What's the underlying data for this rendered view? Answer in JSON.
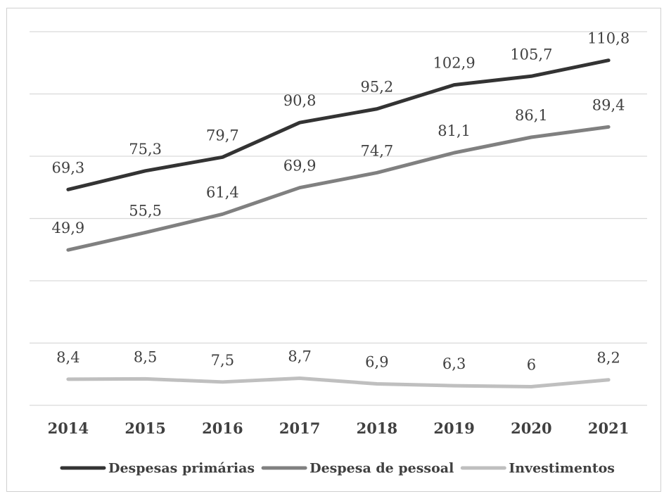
{
  "chart_data": {
    "type": "line",
    "title": "",
    "xlabel": "",
    "ylabel": "",
    "categories": [
      "2014",
      "2015",
      "2016",
      "2017",
      "2018",
      "2019",
      "2020",
      "2021"
    ],
    "ylim": [
      0,
      120
    ],
    "grid": true,
    "legend_position": "bottom",
    "series": [
      {
        "name": "Despesas primárias",
        "color": "#333333",
        "values": [
          69.3,
          75.3,
          79.7,
          90.8,
          95.2,
          102.9,
          105.7,
          110.8
        ],
        "labels": [
          "69,3",
          "75,3",
          "79,7",
          "90,8",
          "95,2",
          "102,9",
          "105,7",
          "110,8"
        ]
      },
      {
        "name": "Despesa de pessoal",
        "color": "#808080",
        "values": [
          49.9,
          55.5,
          61.4,
          69.9,
          74.7,
          81.1,
          86.1,
          89.4
        ],
        "labels": [
          "49,9",
          "55,5",
          "61,4",
          "69,9",
          "74,7",
          "81,1",
          "86,1",
          "89,4"
        ]
      },
      {
        "name": "Investimentos",
        "color": "#bfbfbf",
        "values": [
          8.4,
          8.5,
          7.5,
          8.7,
          6.9,
          6.3,
          6,
          8.2
        ],
        "labels": [
          "8,4",
          "8,5",
          "7,5",
          "8,7",
          "6,9",
          "6,3",
          "6",
          "8,2"
        ]
      }
    ]
  }
}
